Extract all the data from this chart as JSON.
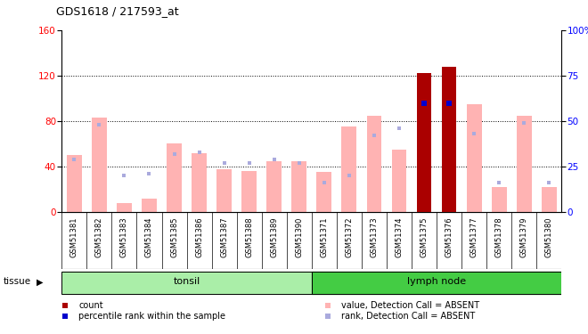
{
  "title": "GDS1618 / 217593_at",
  "samples": [
    "GSM51381",
    "GSM51382",
    "GSM51383",
    "GSM51384",
    "GSM51385",
    "GSM51386",
    "GSM51387",
    "GSM51388",
    "GSM51389",
    "GSM51390",
    "GSM51371",
    "GSM51372",
    "GSM51373",
    "GSM51374",
    "GSM51375",
    "GSM51376",
    "GSM51377",
    "GSM51378",
    "GSM51379",
    "GSM51380"
  ],
  "value_bars": [
    50,
    83,
    8,
    12,
    60,
    52,
    38,
    36,
    45,
    45,
    35,
    75,
    85,
    55,
    122,
    128,
    95,
    22,
    85,
    22
  ],
  "rank_dots": [
    29,
    48,
    20,
    21,
    32,
    33,
    27,
    27,
    29,
    27,
    16,
    20,
    42,
    46,
    60,
    60,
    43,
    16,
    49,
    16
  ],
  "count_bars": [
    0,
    0,
    0,
    0,
    0,
    0,
    0,
    0,
    0,
    0,
    0,
    0,
    0,
    0,
    122,
    128,
    0,
    0,
    0,
    0
  ],
  "count_rank_dots": [
    0,
    0,
    0,
    0,
    0,
    0,
    0,
    0,
    0,
    0,
    0,
    0,
    0,
    0,
    60,
    60,
    0,
    0,
    0,
    0
  ],
  "ylim_left": [
    0,
    160
  ],
  "ylim_right": [
    0,
    100
  ],
  "yticks_left": [
    0,
    40,
    80,
    120,
    160
  ],
  "yticks_right": [
    0,
    25,
    50,
    75,
    100
  ],
  "ytick_labels_right": [
    "0",
    "25",
    "50",
    "75",
    "100%"
  ],
  "bar_color_absent": "#ffb3b3",
  "rank_color_absent": "#aaaadd",
  "count_color": "#aa0000",
  "rank_count_color": "#0000cc",
  "bg_color": "#ffffff",
  "grid_dotted_ticks": [
    40,
    80,
    120
  ],
  "tonsil_color": "#aaeea8",
  "lymph_color": "#44cc44",
  "tonsil_label": "tonsil",
  "lymph_label": "lymph node",
  "tissue_label": "tissue",
  "legend_items": [
    {
      "color": "#aa0000",
      "label": "count"
    },
    {
      "color": "#0000cc",
      "label": "percentile rank within the sample"
    },
    {
      "color": "#ffb3b3",
      "label": "value, Detection Call = ABSENT"
    },
    {
      "color": "#aaaadd",
      "label": "rank, Detection Call = ABSENT"
    }
  ],
  "tonsil_count": 10,
  "lymph_count": 10
}
